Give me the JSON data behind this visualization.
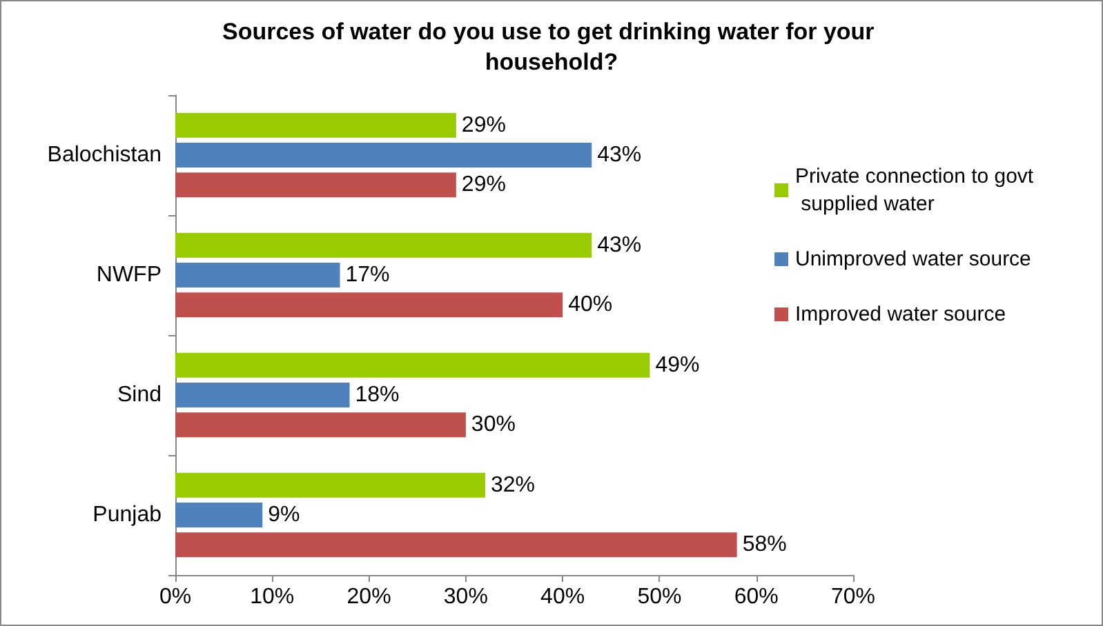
{
  "chart_data": {
    "type": "bar",
    "orientation": "horizontal",
    "title": "Sources of water do you use to get drinking water for your household?",
    "categories": [
      "Balochistan",
      "NWFP",
      "Sind",
      "Punjab"
    ],
    "series": [
      {
        "name": "Private connection to govt supplied water",
        "color": "#99cc00",
        "values": [
          29,
          43,
          49,
          32
        ],
        "value_labels": [
          "29%",
          "43%",
          "49%",
          "32%"
        ]
      },
      {
        "name": "Unimproved water source",
        "color": "#4f81bd",
        "values": [
          43,
          17,
          18,
          9
        ],
        "value_labels": [
          "43%",
          "17%",
          "18%",
          "9%"
        ]
      },
      {
        "name": "Improved water source",
        "color": "#c0504d",
        "values": [
          29,
          40,
          30,
          58
        ],
        "value_labels": [
          "29%",
          "40%",
          "30%",
          "58%"
        ]
      }
    ],
    "xlim": [
      0,
      70
    ],
    "xticks": [
      {
        "value": 0,
        "label": "0%"
      },
      {
        "value": 10,
        "label": "10%"
      },
      {
        "value": 20,
        "label": "20%"
      },
      {
        "value": 30,
        "label": "30%"
      },
      {
        "value": 40,
        "label": "40%"
      },
      {
        "value": 50,
        "label": "50%"
      },
      {
        "value": 60,
        "label": "60%"
      },
      {
        "value": 70,
        "label": "70%"
      }
    ],
    "grid": false,
    "legend": "right"
  }
}
